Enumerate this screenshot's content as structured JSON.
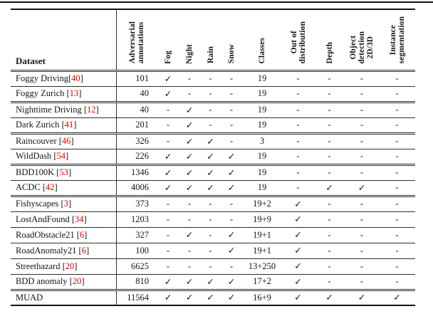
{
  "colors": {
    "citation": "#ee0000",
    "text": "#161616",
    "rule": "#141414",
    "background": "#ffffff"
  },
  "table": {
    "dataset_header": "Dataset",
    "columns": [
      {
        "key": "adv",
        "label": "Adversarial\nannotations"
      },
      {
        "key": "fog",
        "label": "Fog"
      },
      {
        "key": "night",
        "label": "Night"
      },
      {
        "key": "rain",
        "label": "Rain"
      },
      {
        "key": "snow",
        "label": "Snow"
      },
      {
        "key": "classes",
        "label": "Classes"
      },
      {
        "key": "ood",
        "label": "Out of\ndistribution"
      },
      {
        "key": "depth",
        "label": "Depth"
      },
      {
        "key": "objdet",
        "label": "Object\ndetection\n2D/3D"
      },
      {
        "key": "instseg",
        "label": "Instance\nsegmentation"
      }
    ],
    "rows": [
      {
        "name": "Foggy Driving",
        "cite": "40",
        "space_before_cite": false,
        "group_start": false,
        "adv": "101",
        "fog": "✓",
        "night": "-",
        "rain": "-",
        "snow": "-",
        "classes": "19",
        "ood": "-",
        "depth": "-",
        "objdet": "-",
        "instseg": "-"
      },
      {
        "name": "Foggy Zurich",
        "cite": "13",
        "space_before_cite": true,
        "group_start": false,
        "adv": "40",
        "fog": "✓",
        "night": "-",
        "rain": "-",
        "snow": "-",
        "classes": "19",
        "ood": "-",
        "depth": "-",
        "objdet": "-",
        "instseg": "-"
      },
      {
        "name": "Nighttime Driving",
        "cite": "12",
        "space_before_cite": true,
        "group_start": true,
        "adv": "40",
        "fog": "-",
        "night": "✓",
        "rain": "-",
        "snow": "-",
        "classes": "19",
        "ood": "-",
        "depth": "-",
        "objdet": "-",
        "instseg": "-"
      },
      {
        "name": "Dark Zurich",
        "cite": "41",
        "space_before_cite": true,
        "group_start": false,
        "adv": "201",
        "fog": "-",
        "night": "✓",
        "rain": "-",
        "snow": "-",
        "classes": "19",
        "ood": "-",
        "depth": "-",
        "objdet": "-",
        "instseg": "-"
      },
      {
        "name": "Raincouver",
        "cite": "46",
        "space_before_cite": true,
        "group_start": true,
        "adv": "326",
        "fog": "-",
        "night": "✓",
        "rain": "✓",
        "snow": "-",
        "classes": "3",
        "ood": "-",
        "depth": "-",
        "objdet": "-",
        "instseg": "-"
      },
      {
        "name": "WildDash",
        "cite": "54",
        "space_before_cite": true,
        "group_start": false,
        "adv": "226",
        "fog": "✓",
        "night": "✓",
        "rain": "✓",
        "snow": "✓",
        "classes": "19",
        "ood": "-",
        "depth": "-",
        "objdet": "-",
        "instseg": "-"
      },
      {
        "name": "BDD100K",
        "cite": "53",
        "space_before_cite": true,
        "group_start": true,
        "adv": "1346",
        "fog": "✓",
        "night": "✓",
        "rain": "✓",
        "snow": "✓",
        "classes": "19",
        "ood": "-",
        "depth": "-",
        "objdet": "-",
        "instseg": "-"
      },
      {
        "name": "ACDC",
        "cite": "42",
        "space_before_cite": true,
        "group_start": false,
        "adv": "4006",
        "fog": "✓",
        "night": "✓",
        "rain": "✓",
        "snow": "✓",
        "classes": "19",
        "ood": "-",
        "depth": "✓",
        "objdet": "✓",
        "instseg": "-"
      },
      {
        "name": "Fishyscapes",
        "cite": "3",
        "space_before_cite": true,
        "group_start": true,
        "adv": "373",
        "fog": "-",
        "night": "-",
        "rain": "-",
        "snow": "-",
        "classes": "19+2",
        "ood": "✓",
        "depth": "-",
        "objdet": "-",
        "instseg": "-"
      },
      {
        "name": "LostAndFound",
        "cite": "34",
        "space_before_cite": true,
        "group_start": false,
        "adv": "1203",
        "fog": "-",
        "night": "-",
        "rain": "-",
        "snow": "-",
        "classes": "19+9",
        "ood": "✓",
        "depth": "-",
        "objdet": "-",
        "instseg": "-"
      },
      {
        "name": "RoadObstacle21",
        "cite": "6",
        "space_before_cite": true,
        "group_start": false,
        "adv": "327",
        "fog": "-",
        "night": "✓",
        "rain": "-",
        "snow": "✓",
        "classes": "19+1",
        "ood": "✓",
        "depth": "-",
        "objdet": "-",
        "instseg": "-"
      },
      {
        "name": "RoadAnomaly21",
        "cite": "6",
        "space_before_cite": true,
        "group_start": false,
        "adv": "100",
        "fog": "-",
        "night": "-",
        "rain": "-",
        "snow": "✓",
        "classes": "19+1",
        "ood": "✓",
        "depth": "-",
        "objdet": "-",
        "instseg": "-"
      },
      {
        "name": "Streethazard",
        "cite": "20",
        "space_before_cite": true,
        "group_start": false,
        "adv": "6625",
        "fog": "-",
        "night": "-",
        "rain": "-",
        "snow": "-",
        "classes": "13+250",
        "ood": "✓",
        "depth": "-",
        "objdet": "-",
        "instseg": "-"
      },
      {
        "name": "BDD anomaly",
        "cite": "20",
        "space_before_cite": true,
        "group_start": false,
        "adv": "810",
        "fog": "✓",
        "night": "✓",
        "rain": "✓",
        "snow": "✓",
        "classes": "17+2",
        "ood": "✓",
        "depth": "-",
        "objdet": "-",
        "instseg": "-"
      },
      {
        "name": "MUAD",
        "cite": "",
        "space_before_cite": false,
        "group_start": true,
        "adv": "11564",
        "fog": "✓",
        "night": "✓",
        "rain": "✓",
        "snow": "✓",
        "classes": "16+9",
        "ood": "✓",
        "depth": "✓",
        "objdet": "✓",
        "instseg": "✓"
      }
    ]
  }
}
